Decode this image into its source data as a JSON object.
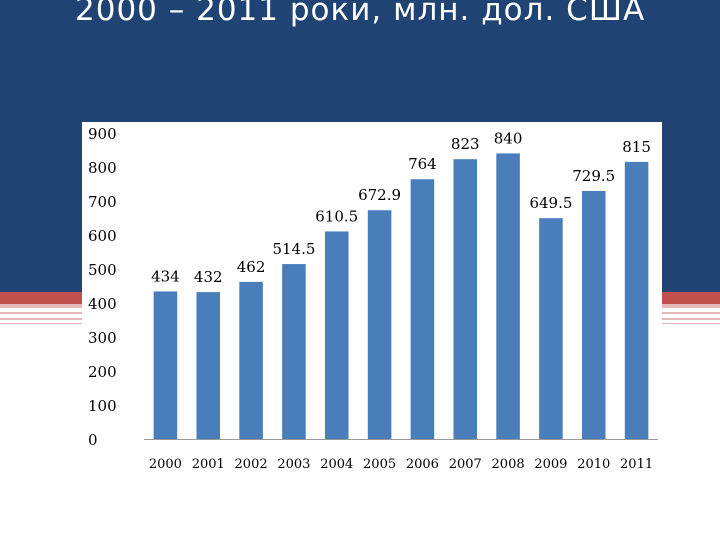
{
  "title": "2000 – 2011 роки, млн. дол. США",
  "colors": {
    "header_bg": "#1f4473",
    "bar": "#4a7ebb",
    "stripe_red": "#c0504d",
    "stripe_pink": "#e6b9b8"
  },
  "chart_data": {
    "type": "bar",
    "title": "2000 – 2011 роки, млн. дол. США",
    "categories": [
      "2000",
      "2001",
      "2002",
      "2003",
      "2004",
      "2005",
      "2006",
      "2007",
      "2008",
      "2009",
      "2010",
      "2011"
    ],
    "values": [
      434,
      432,
      462,
      514.5,
      610.5,
      672.9,
      764,
      823,
      840,
      649.5,
      729.5,
      815
    ],
    "data_labels": [
      "434",
      "432",
      "462",
      "514.5",
      "610.5",
      "672.9",
      "764",
      "823",
      "840",
      "649.5",
      "729.5",
      "815"
    ],
    "ylim": [
      0,
      900
    ],
    "yticks": [
      0,
      100,
      200,
      300,
      400,
      500,
      600,
      700,
      800,
      900
    ],
    "ytick_labels": [
      "0",
      "100",
      "200",
      "300",
      "400",
      "500",
      "600",
      "700",
      "800",
      "900"
    ],
    "grid": false,
    "legend": "none",
    "xlabel": "",
    "ylabel": ""
  }
}
